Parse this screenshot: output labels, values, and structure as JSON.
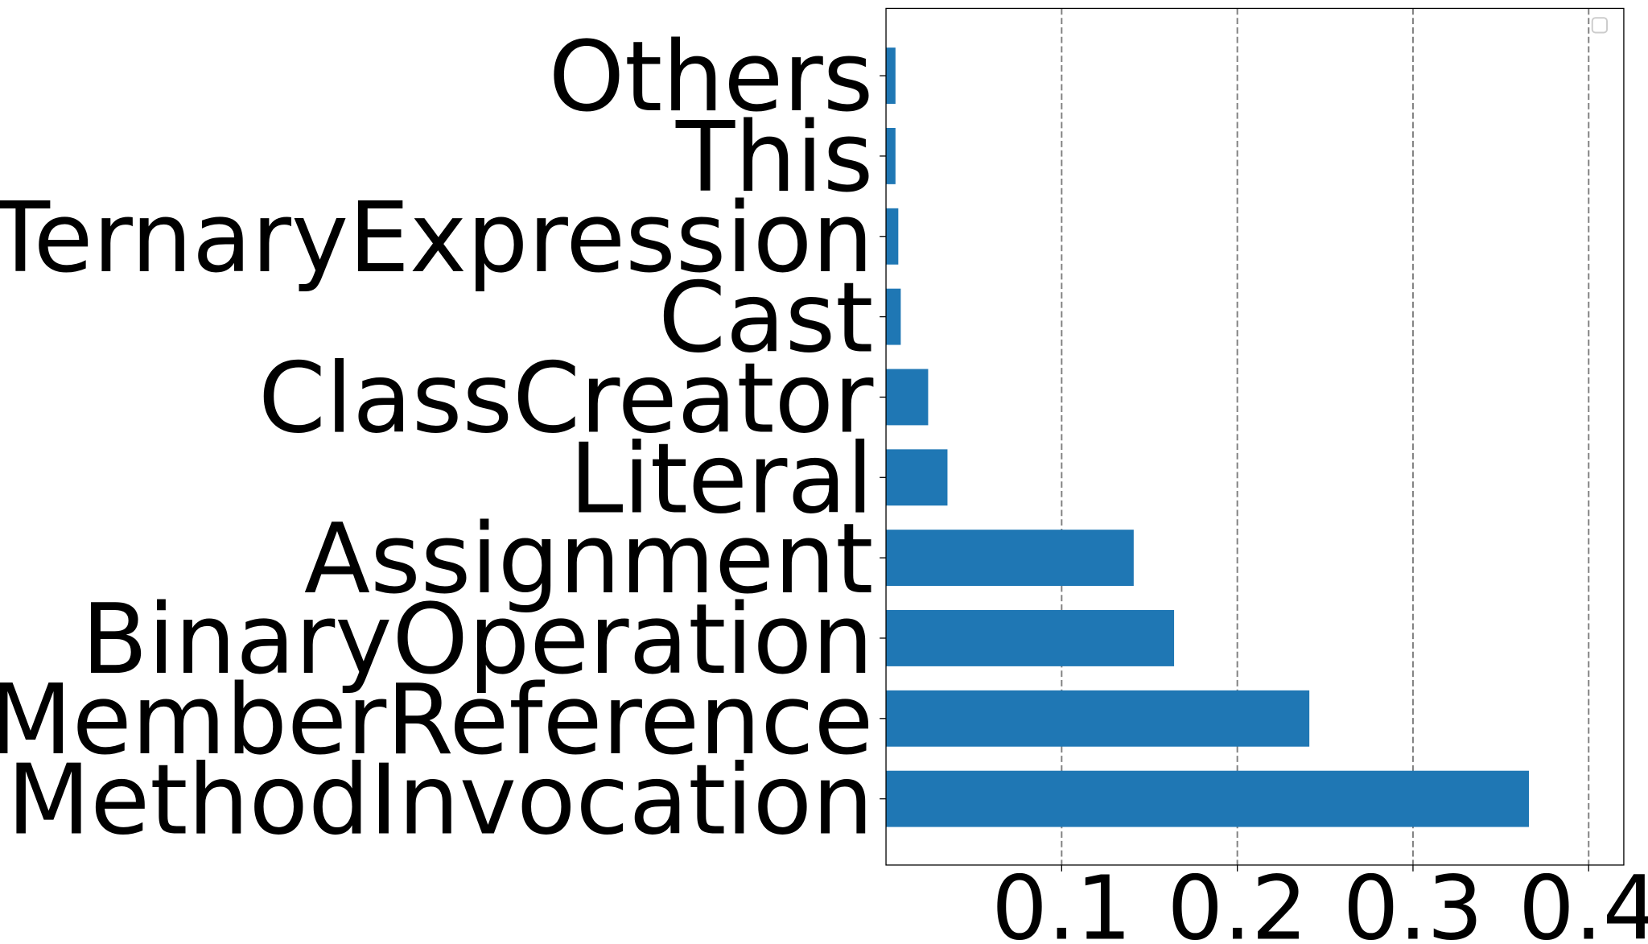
{
  "chart_data": {
    "type": "barh",
    "categories": [
      "MethodInvocation",
      "MemberReference",
      "BinaryOperation",
      "Assignment",
      "Literal",
      "ClassCreator",
      "Cast",
      "TernaryExpression",
      "This",
      "Others"
    ],
    "values": [
      0.366,
      0.241,
      0.164,
      0.141,
      0.035,
      0.024,
      0.0084,
      0.007,
      0.0054,
      0.0054
    ],
    "color": "#1f77b4",
    "xlim": [
      0,
      0.42
    ],
    "xticks": [
      0.1,
      0.2,
      0.3,
      0.4
    ],
    "grid": true
  }
}
